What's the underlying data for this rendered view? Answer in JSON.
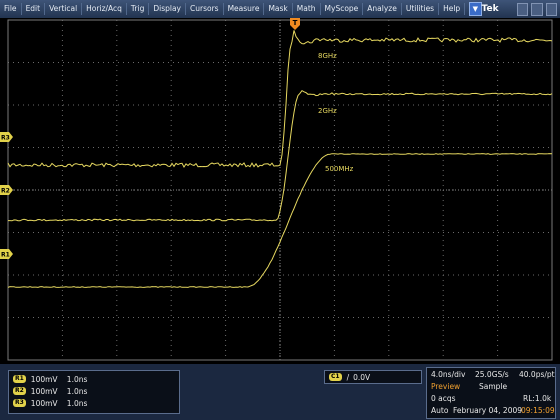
{
  "menu": {
    "items": [
      "File",
      "Edit",
      "Vertical",
      "Horiz/Acq",
      "Trig",
      "Display",
      "Cursors",
      "Measure",
      "Mask",
      "Math",
      "MyScope",
      "Analyze",
      "Utilities",
      "Help"
    ],
    "brand": "Tek"
  },
  "screen": {
    "markers": [
      "R3",
      "R2",
      "R1"
    ],
    "trace_labels": [
      "8GHz",
      "2GHz",
      "500MHz"
    ],
    "trigger_marker": "T"
  },
  "channels": [
    {
      "id": "R1",
      "scale": "100mV",
      "time": "1.0ns"
    },
    {
      "id": "R2",
      "scale": "100mV",
      "time": "1.0ns"
    },
    {
      "id": "R3",
      "scale": "100mV",
      "time": "1.0ns"
    }
  ],
  "trigger": {
    "source": "C1",
    "level": "0.0V"
  },
  "status": {
    "horizontal": "4.0ns/div",
    "sample_rate": "25.0GS/s",
    "resolution": "40.0ps/pt",
    "mode": "Preview",
    "acq_mode": "Sample",
    "acqs": "0 acqs",
    "record_length": "RL:1.0k",
    "trigger_mode": "Auto",
    "date": "February 04, 2009",
    "time": "09:15:09"
  }
}
